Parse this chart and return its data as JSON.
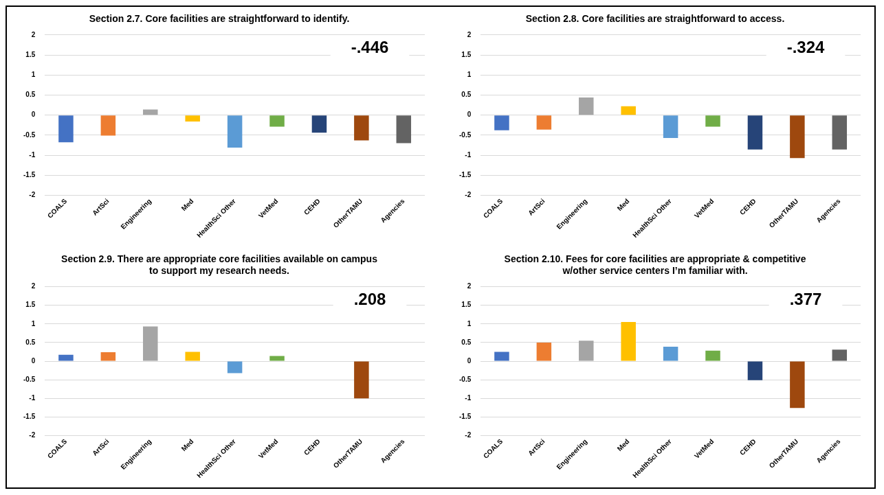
{
  "chart_data": [
    {
      "type": "bar",
      "title": "Section 2.7. Core facilities are straightforward to identify.",
      "categories": [
        "COALS",
        "ArtSci",
        "Engineering",
        "Med",
        "HealthSci Other",
        "VetMed",
        "CEHD",
        "OtherTAMU",
        "Agencies"
      ],
      "values": [
        -0.68,
        -0.51,
        0.14,
        -0.16,
        -0.81,
        -0.29,
        -0.44,
        -0.63,
        -0.7
      ],
      "colors": [
        "#4472c4",
        "#ed7d31",
        "#a5a5a5",
        "#ffc000",
        "#5b9bd5",
        "#70ad47",
        "#264478",
        "#9e480e",
        "#636363"
      ],
      "ylim": [
        -2,
        2
      ],
      "yticks": [
        -2,
        -1.5,
        -1,
        -0.5,
        0,
        0.5,
        1,
        1.5,
        2
      ],
      "grid": "y",
      "annotations": [
        "-.446"
      ]
    },
    {
      "type": "bar",
      "title": "Section 2.8. Core facilities are straightforward to access.",
      "categories": [
        "COALS",
        "ArtSci",
        "Engineering",
        "Med",
        "HealthSci Other",
        "VetMed",
        "CEHD",
        "OtherTAMU",
        "Agencies"
      ],
      "values": [
        -0.38,
        -0.36,
        0.44,
        0.22,
        -0.57,
        -0.29,
        -0.86,
        -1.07,
        -0.86
      ],
      "colors": [
        "#4472c4",
        "#ed7d31",
        "#a5a5a5",
        "#ffc000",
        "#5b9bd5",
        "#70ad47",
        "#264478",
        "#9e480e",
        "#636363"
      ],
      "ylim": [
        -2,
        2
      ],
      "yticks": [
        -2,
        -1.5,
        -1,
        -0.5,
        0,
        0.5,
        1,
        1.5,
        2
      ],
      "grid": "y",
      "annotations": [
        "-.324"
      ]
    },
    {
      "type": "bar",
      "title": "Section 2.9. There are appropriate core facilities available on campus to support my research needs.",
      "categories": [
        "COALS",
        "ArtSci",
        "Engineering",
        "Med",
        "HealthSci Other",
        "VetMed",
        "CEHD",
        "OtherTAMU",
        "Agencies"
      ],
      "values": [
        0.17,
        0.24,
        0.93,
        0.25,
        -0.32,
        0.14,
        null,
        -1.0,
        null
      ],
      "colors": [
        "#4472c4",
        "#ed7d31",
        "#a5a5a5",
        "#ffc000",
        "#5b9bd5",
        "#70ad47",
        "#264478",
        "#9e480e",
        "#636363"
      ],
      "ylim": [
        -2,
        2
      ],
      "yticks": [
        -2,
        -1.5,
        -1,
        -0.5,
        0,
        0.5,
        1,
        1.5,
        2
      ],
      "grid": "y",
      "annotations": [
        ".208"
      ]
    },
    {
      "type": "bar",
      "title": "Section 2.10. Fees for core facilities are appropriate & competitive w/other service centers I’m familiar with.",
      "categories": [
        "COALS",
        "ArtSci",
        "Engineering",
        "Med",
        "HealthSci Other",
        "VetMed",
        "CEHD",
        "OtherTAMU",
        "Agencies"
      ],
      "values": [
        0.25,
        0.5,
        0.55,
        1.05,
        0.39,
        0.28,
        -0.51,
        -1.26,
        0.31
      ],
      "colors": [
        "#4472c4",
        "#ed7d31",
        "#a5a5a5",
        "#ffc000",
        "#5b9bd5",
        "#70ad47",
        "#264478",
        "#9e480e",
        "#636363"
      ],
      "ylim": [
        -2,
        2
      ],
      "yticks": [
        -2,
        -1.5,
        -1,
        -0.5,
        0,
        0.5,
        1,
        1.5,
        2
      ],
      "grid": "y",
      "annotations": [
        ".377"
      ]
    }
  ]
}
